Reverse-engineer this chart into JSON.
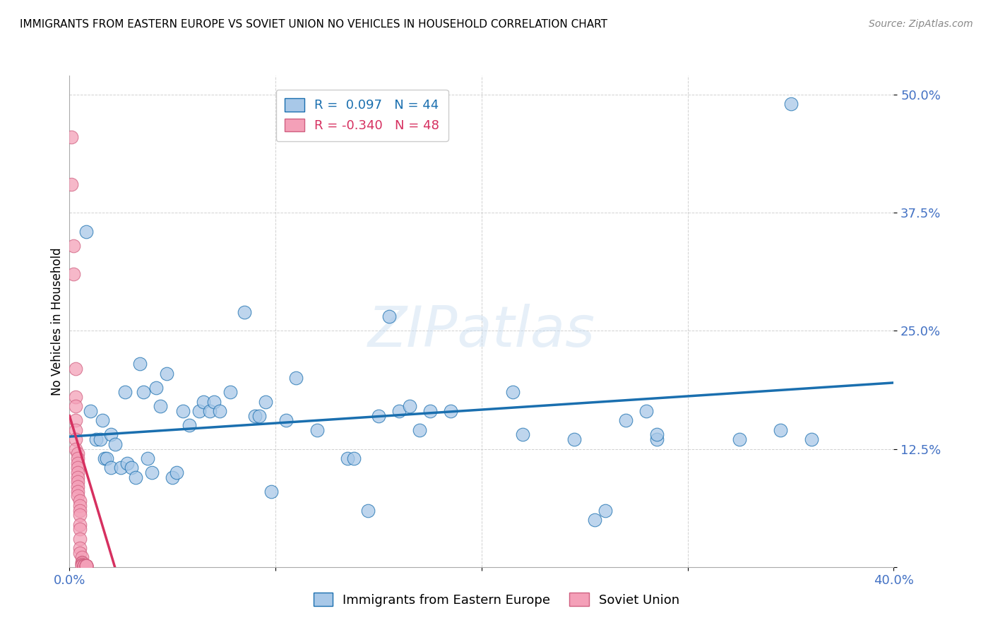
{
  "title": "IMMIGRANTS FROM EASTERN EUROPE VS SOVIET UNION NO VEHICLES IN HOUSEHOLD CORRELATION CHART",
  "source": "Source: ZipAtlas.com",
  "ylabel": "No Vehicles in Household",
  "x_min": 0.0,
  "x_max": 0.4,
  "y_min": 0.0,
  "y_max": 0.52,
  "y_ticks": [
    0.0,
    0.125,
    0.25,
    0.375,
    0.5
  ],
  "y_tick_labels": [
    "",
    "12.5%",
    "25.0%",
    "37.5%",
    "50.0%"
  ],
  "x_ticks": [
    0.0,
    0.1,
    0.2,
    0.3,
    0.4
  ],
  "x_tick_labels": [
    "0.0%",
    "",
    "",
    "",
    "40.0%"
  ],
  "color_blue": "#a8c8e8",
  "color_pink": "#f4a0b8",
  "color_line_blue": "#1a6faf",
  "color_line_pink": "#d63060",
  "title_fontsize": 11,
  "axis_color": "#4472c4",
  "blue_trend_x": [
    0.0,
    0.4
  ],
  "blue_trend_y": [
    0.138,
    0.195
  ],
  "pink_trend_x": [
    0.0,
    0.022
  ],
  "pink_trend_y": [
    0.16,
    0.0
  ],
  "blue_scatter": [
    [
      0.008,
      0.355
    ],
    [
      0.01,
      0.165
    ],
    [
      0.013,
      0.135
    ],
    [
      0.015,
      0.135
    ],
    [
      0.016,
      0.155
    ],
    [
      0.017,
      0.115
    ],
    [
      0.018,
      0.115
    ],
    [
      0.02,
      0.14
    ],
    [
      0.02,
      0.105
    ],
    [
      0.022,
      0.13
    ],
    [
      0.025,
      0.105
    ],
    [
      0.027,
      0.185
    ],
    [
      0.028,
      0.11
    ],
    [
      0.03,
      0.105
    ],
    [
      0.032,
      0.095
    ],
    [
      0.034,
      0.215
    ],
    [
      0.036,
      0.185
    ],
    [
      0.038,
      0.115
    ],
    [
      0.04,
      0.1
    ],
    [
      0.042,
      0.19
    ],
    [
      0.044,
      0.17
    ],
    [
      0.047,
      0.205
    ],
    [
      0.05,
      0.095
    ],
    [
      0.052,
      0.1
    ],
    [
      0.055,
      0.165
    ],
    [
      0.058,
      0.15
    ],
    [
      0.063,
      0.165
    ],
    [
      0.065,
      0.175
    ],
    [
      0.068,
      0.165
    ],
    [
      0.07,
      0.175
    ],
    [
      0.073,
      0.165
    ],
    [
      0.078,
      0.185
    ],
    [
      0.085,
      0.27
    ],
    [
      0.09,
      0.16
    ],
    [
      0.092,
      0.16
    ],
    [
      0.095,
      0.175
    ],
    [
      0.098,
      0.08
    ],
    [
      0.105,
      0.155
    ],
    [
      0.11,
      0.2
    ],
    [
      0.12,
      0.145
    ],
    [
      0.135,
      0.115
    ],
    [
      0.138,
      0.115
    ],
    [
      0.145,
      0.06
    ],
    [
      0.15,
      0.16
    ],
    [
      0.155,
      0.265
    ],
    [
      0.16,
      0.165
    ],
    [
      0.165,
      0.17
    ],
    [
      0.17,
      0.145
    ],
    [
      0.175,
      0.165
    ],
    [
      0.185,
      0.165
    ],
    [
      0.215,
      0.185
    ],
    [
      0.22,
      0.14
    ],
    [
      0.245,
      0.135
    ],
    [
      0.255,
      0.05
    ],
    [
      0.26,
      0.06
    ],
    [
      0.27,
      0.155
    ],
    [
      0.28,
      0.165
    ],
    [
      0.285,
      0.135
    ],
    [
      0.285,
      0.14
    ],
    [
      0.325,
      0.135
    ],
    [
      0.345,
      0.145
    ],
    [
      0.35,
      0.49
    ],
    [
      0.36,
      0.135
    ]
  ],
  "pink_scatter": [
    [
      0.001,
      0.455
    ],
    [
      0.001,
      0.405
    ],
    [
      0.002,
      0.34
    ],
    [
      0.002,
      0.31
    ],
    [
      0.003,
      0.21
    ],
    [
      0.003,
      0.18
    ],
    [
      0.003,
      0.17
    ],
    [
      0.003,
      0.155
    ],
    [
      0.003,
      0.145
    ],
    [
      0.003,
      0.135
    ],
    [
      0.003,
      0.125
    ],
    [
      0.004,
      0.12
    ],
    [
      0.004,
      0.115
    ],
    [
      0.004,
      0.11
    ],
    [
      0.004,
      0.105
    ],
    [
      0.004,
      0.1
    ],
    [
      0.004,
      0.095
    ],
    [
      0.004,
      0.09
    ],
    [
      0.004,
      0.085
    ],
    [
      0.004,
      0.08
    ],
    [
      0.004,
      0.075
    ],
    [
      0.005,
      0.07
    ],
    [
      0.005,
      0.065
    ],
    [
      0.005,
      0.06
    ],
    [
      0.005,
      0.055
    ],
    [
      0.005,
      0.045
    ],
    [
      0.005,
      0.04
    ],
    [
      0.005,
      0.03
    ],
    [
      0.005,
      0.02
    ],
    [
      0.005,
      0.015
    ],
    [
      0.006,
      0.01
    ],
    [
      0.006,
      0.005
    ],
    [
      0.006,
      0.004
    ],
    [
      0.006,
      0.003
    ],
    [
      0.006,
      0.002
    ],
    [
      0.006,
      0.001
    ],
    [
      0.007,
      0.001
    ],
    [
      0.007,
      0.001
    ],
    [
      0.007,
      0.001
    ],
    [
      0.007,
      0.001
    ],
    [
      0.007,
      0.001
    ],
    [
      0.007,
      0.001
    ],
    [
      0.008,
      0.001
    ],
    [
      0.008,
      0.001
    ],
    [
      0.008,
      0.001
    ],
    [
      0.008,
      0.001
    ],
    [
      0.008,
      0.001
    ],
    [
      0.008,
      0.001
    ]
  ]
}
